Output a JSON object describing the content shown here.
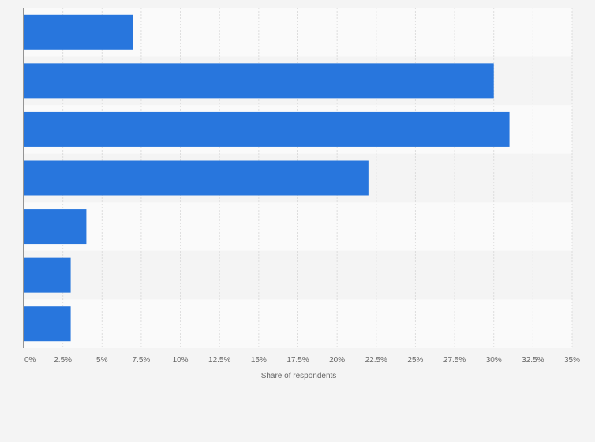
{
  "chart_data": {
    "type": "bar",
    "orientation": "horizontal",
    "categories": [
      "",
      "",
      "",
      "",
      "",
      "",
      ""
    ],
    "values": [
      7,
      30,
      31,
      22,
      4,
      3,
      3
    ],
    "value_unit": "%",
    "xlabel": "Share of respondents",
    "ylabel": "",
    "xlim": [
      0,
      35
    ],
    "ticks": [
      0,
      2.5,
      5,
      7.5,
      10,
      12.5,
      15,
      17.5,
      20,
      22.5,
      25,
      27.5,
      30,
      32.5,
      35
    ],
    "tick_labels": [
      "0%",
      "2.5%",
      "5%",
      "7.5%",
      "10%",
      "12.5%",
      "15%",
      "17.5%",
      "20%",
      "22.5%",
      "25%",
      "27.5%",
      "30%",
      "32.5%",
      "35%"
    ],
    "grid": true,
    "legend": "none"
  },
  "colors": {
    "bar": "#2876dd",
    "background": "#f4f4f4",
    "band_light": "#fafafa",
    "band_dark": "#f4f4f4",
    "grid": "#dddddd",
    "axis": "#333333",
    "text": "#666666"
  }
}
